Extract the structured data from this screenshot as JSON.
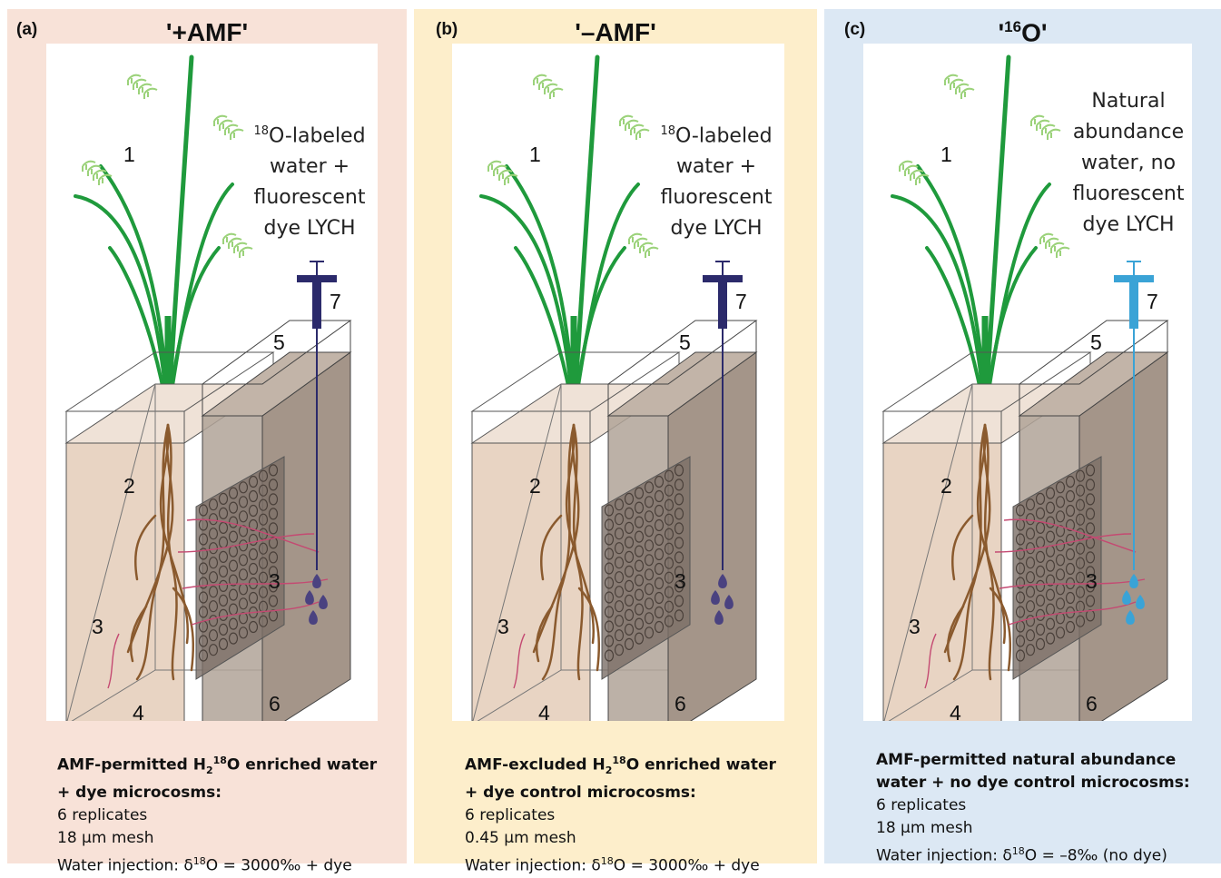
{
  "panels": [
    {
      "label": "(a)",
      "title": "'+AMF'",
      "bg": "#f8e2d8",
      "syringe_color": "#2b2a6b",
      "drop_color": "#4a4280",
      "water_line1_sup": "18",
      "water_line1": "O-labeled",
      "water_lines": [
        "water +",
        "fluorescent",
        "dye LYCH"
      ],
      "caption_bold1_pre": "AMF-permitted H",
      "caption_bold1_sub": "2",
      "caption_bold1_sup": "18",
      "caption_bold1_post": "O enriched water",
      "caption_bold2": "+ dye microcosms:",
      "caption_replicates": "6 replicates",
      "caption_mesh": "18 μm mesh",
      "caption_injection_pre": "Water injection: δ",
      "caption_injection_sup": "18",
      "caption_injection_post": "O = 3000‰ + dye"
    },
    {
      "label": "(b)",
      "title": "'–AMF'",
      "bg": "#fdeecb",
      "syringe_color": "#2b2a6b",
      "drop_color": "#4a4280",
      "water_line1_sup": "18",
      "water_line1": "O-labeled",
      "water_lines": [
        "water +",
        "fluorescent",
        "dye LYCH"
      ],
      "caption_bold1_pre": "AMF-excluded H",
      "caption_bold1_sub": "2",
      "caption_bold1_sup": "18",
      "caption_bold1_post": "O enriched water",
      "caption_bold2": "+ dye control microcosms:",
      "caption_replicates": "6 replicates",
      "caption_mesh": "0.45 μm mesh",
      "caption_injection_pre": "Water injection: δ",
      "caption_injection_sup": "18",
      "caption_injection_post": "O = 3000‰ + dye"
    },
    {
      "label": "(c)",
      "title_pre": "'",
      "title_sup": "16",
      "title_post": "O'",
      "bg": "#dce8f4",
      "syringe_color": "#3aa3d6",
      "drop_color": "#3aa3d6",
      "water_lines": [
        "Natural",
        "abundance",
        "water, no",
        "fluorescent",
        "dye LYCH"
      ],
      "caption_bold1": "AMF-permitted natural abundance",
      "caption_bold2": "water + no dye control microcosms:",
      "caption_replicates": "6 replicates",
      "caption_mesh": "18 μm mesh",
      "caption_injection_pre": "Water injection: δ",
      "caption_injection_sup": "18",
      "caption_injection_post": "O = –8‰ (no dye)"
    }
  ],
  "diagram_labels": {
    "plant": "1",
    "roots": "2",
    "hyphae": "3",
    "root_compartment": "4",
    "hyphal_compartment": "5",
    "mesh": "6",
    "syringe": "7"
  }
}
